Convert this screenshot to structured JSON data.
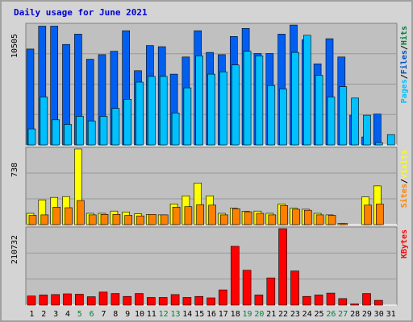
{
  "colors": {
    "background": "#d4d4d4",
    "plot_bg": "#c0c0c0",
    "grid": "#999999",
    "title": "#0000d0",
    "weekend_label": "#007f3f",
    "day_label": "#000000",
    "hits": "#005ff0",
    "files": "#00c0ff",
    "pages": "#00c0ff",
    "visits": "#ffff00",
    "sites": "#ff8000",
    "kbytes": "#ff0000",
    "legend_hits": "#007f3f",
    "legend_files": "#0050c0",
    "legend_pages": "#00c0ff",
    "legend_visits": "#ffff00",
    "legend_sites": "#ff8000",
    "legend_kbytes": "#ff0000",
    "slash": "#000000"
  },
  "chart_data": {
    "type": "bar",
    "title": "Daily usage for June 2021",
    "categories": [
      "1",
      "2",
      "3",
      "4",
      "5",
      "6",
      "7",
      "8",
      "9",
      "10",
      "11",
      "12",
      "13",
      "14",
      "15",
      "16",
      "17",
      "18",
      "19",
      "20",
      "21",
      "22",
      "23",
      "24",
      "25",
      "26",
      "27",
      "28",
      "29",
      "30",
      "31"
    ],
    "weekend_days": [
      "5",
      "6",
      "12",
      "13",
      "19",
      "20",
      "26",
      "27"
    ],
    "panels": [
      {
        "id": "hits_files_pages",
        "max_label": "10505",
        "ylim": [
          0,
          10505
        ],
        "legend": [
          "Pages",
          "/",
          "Files",
          "/",
          "Hits"
        ],
        "series": [
          {
            "name": "Hits",
            "values": [
              8400,
              10400,
              10400,
              8800,
              9700,
              7500,
              7900,
              8200,
              10000,
              6500,
              8700,
              8600,
              6200,
              7700,
              10000,
              8100,
              7900,
              9500,
              10200,
              8000,
              8000,
              9700,
              10500,
              9200,
              7100,
              9300,
              7700,
              2600,
              700,
              2700,
              0
            ]
          },
          {
            "name": "Files",
            "values": [
              1400,
              4200,
              2200,
              1800,
              2500,
              2100,
              2500,
              3200,
              4000,
              5500,
              6000,
              6000,
              2800,
              5000,
              7800,
              6200,
              6400,
              7000,
              8200,
              7800,
              5200,
              4900,
              8100,
              9600,
              6100,
              4200,
              5100,
              4100,
              2600,
              200,
              900
            ]
          },
          {
            "name": "Pages",
            "values": [
              1300,
              2700,
              2100,
              1800,
              2400,
              1600,
              2400,
              3100,
              3800,
              5500,
              5900,
              5900,
              2800,
              5000,
              7800,
              6200,
              6300,
              7000,
              8200,
              5200,
              4900,
              8100,
              9600,
              6100,
              4200,
              5100,
              4100,
              2600,
              200,
              900,
              2000
            ]
          }
        ]
      },
      {
        "id": "visits_sites",
        "max_label": "738",
        "ylim": [
          0,
          738
        ],
        "legend": [
          "Sites",
          "/",
          "Visits"
        ],
        "series": [
          {
            "name": "Visits",
            "values": [
              110,
              241,
              265,
              273,
              738,
              110,
              110,
              132,
              123,
              105,
              100,
              95,
              202,
              280,
              405,
              280,
              110,
              160,
              130,
              132,
              110,
              200,
              160,
              150,
              110,
              95,
              10,
              0,
              270,
              378,
              0
            ]
          },
          {
            "name": "Sites",
            "values": [
              90,
              95,
              170,
              165,
              235,
              95,
              100,
              100,
              90,
              85,
              100,
              95,
              170,
              175,
              195,
              190,
              95,
              155,
              125,
              110,
              95,
              185,
              150,
              140,
              95,
              90,
              10,
              0,
              190,
              200,
              0
            ]
          }
        ]
      },
      {
        "id": "kbytes",
        "max_label": "210732",
        "ylim": [
          0,
          210732
        ],
        "legend": [
          "KBytes"
        ],
        "series": [
          {
            "name": "KBytes",
            "values": [
              25000,
              28000,
              29000,
              31000,
              30000,
              23000,
              36000,
              32000,
              24000,
              32000,
              21000,
              21000,
              29000,
              21000,
              24000,
              20000,
              42000,
              162000,
              96000,
              28000,
              75000,
              210732,
              94000,
              24000,
              28000,
              33000,
              18000,
              3000,
              32000,
              13000,
              0
            ]
          }
        ]
      }
    ]
  }
}
